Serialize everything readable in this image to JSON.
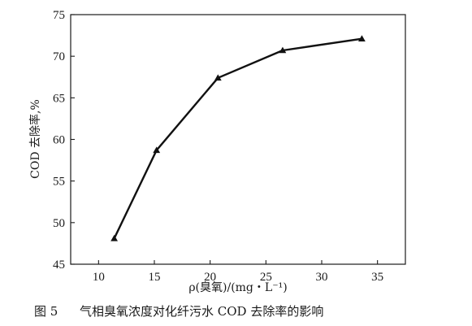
{
  "figure": {
    "caption_number": "图 5",
    "caption_text": "气相臭氧浓度对化纤污水 COD 去除率的影响"
  },
  "chart_data": {
    "type": "line",
    "xlabel": "ρ(臭氧)/(mg・L⁻¹)",
    "ylabel": "COD 去除率,%",
    "xlim": [
      7.5,
      37.5
    ],
    "ylim": [
      45,
      75
    ],
    "xticks": [
      10,
      15,
      20,
      25,
      30,
      35
    ],
    "yticks": [
      45,
      50,
      55,
      60,
      65,
      70,
      75
    ],
    "marker": "triangle",
    "line_color": "#111111",
    "grid": false,
    "x": [
      11.4,
      15.2,
      20.7,
      26.5,
      33.6
    ],
    "y": [
      48.1,
      58.7,
      67.4,
      70.7,
      72.1
    ]
  }
}
